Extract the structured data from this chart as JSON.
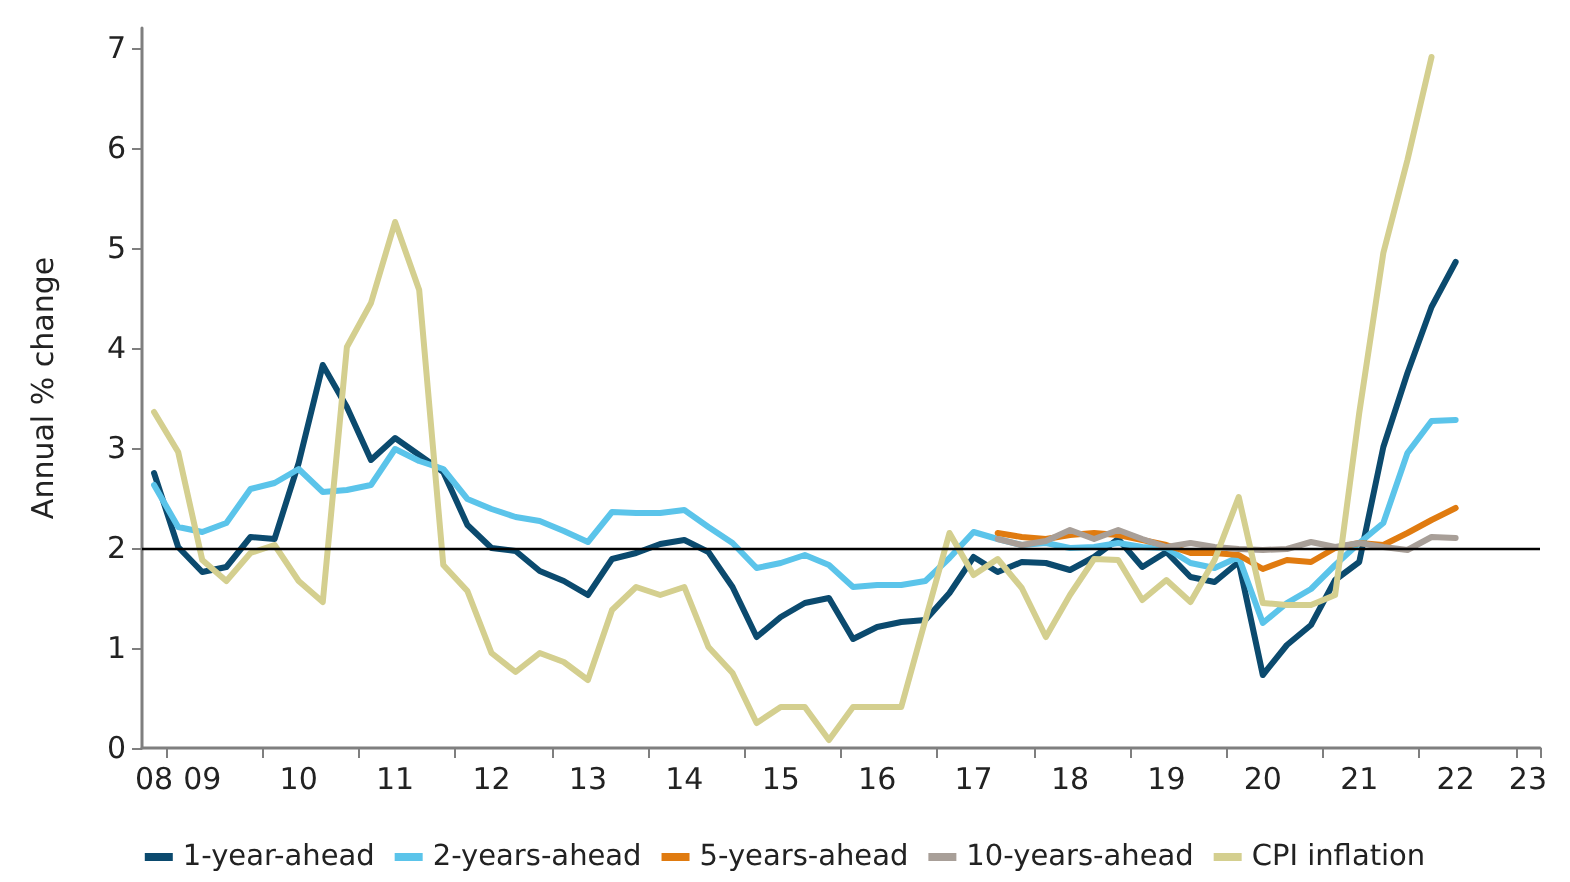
{
  "chart_data": {
    "type": "line",
    "ylabel": "Annual % change",
    "categories": [
      "08",
      null,
      "09",
      null,
      null,
      null,
      "10",
      null,
      null,
      null,
      "11",
      null,
      null,
      null,
      "12",
      null,
      null,
      null,
      "13",
      null,
      null,
      null,
      "14",
      null,
      null,
      null,
      "15",
      null,
      null,
      null,
      "16",
      null,
      null,
      null,
      "17",
      null,
      null,
      null,
      "18",
      null,
      null,
      null,
      "19",
      null,
      null,
      null,
      "20",
      null,
      null,
      null,
      "21",
      null,
      null,
      null,
      "22",
      null,
      null,
      "23"
    ],
    "series": [
      {
        "name": "1-year-ahead",
        "color": "#0b4a6e",
        "values": [
          2.75,
          2.01,
          1.76,
          1.81,
          2.11,
          2.09,
          2.85,
          3.83,
          3.41,
          2.88,
          3.1,
          2.93,
          2.76,
          2.23,
          2.0,
          1.97,
          1.77,
          1.67,
          1.53,
          1.89,
          1.95,
          2.04,
          2.08,
          1.96,
          1.61,
          1.11,
          1.31,
          1.45,
          1.5,
          1.09,
          1.21,
          1.26,
          1.28,
          1.55,
          1.91,
          1.76,
          1.86,
          1.85,
          1.78,
          1.91,
          2.09,
          1.81,
          1.96,
          1.71,
          1.66,
          1.86,
          0.73,
          1.03,
          1.23,
          1.68,
          1.86,
          3.01,
          3.75,
          4.41,
          4.86,
          null,
          null,
          null
        ]
      },
      {
        "name": "2-years-ahead",
        "color": "#5bc4ea",
        "values": [
          2.63,
          2.21,
          2.16,
          2.25,
          2.59,
          2.65,
          2.79,
          2.56,
          2.58,
          2.63,
          2.99,
          2.87,
          2.79,
          2.49,
          2.39,
          2.31,
          2.27,
          2.17,
          2.06,
          2.36,
          2.35,
          2.35,
          2.38,
          2.21,
          2.05,
          1.8,
          1.85,
          1.93,
          1.83,
          1.61,
          1.63,
          1.63,
          1.67,
          1.9,
          2.16,
          2.09,
          2.03,
          2.05,
          2.0,
          2.01,
          2.05,
          2.01,
          2.0,
          1.85,
          1.8,
          1.91,
          1.25,
          1.45,
          1.59,
          1.83,
          2.05,
          2.25,
          2.95,
          3.27,
          3.28,
          null,
          null,
          null
        ]
      },
      {
        "name": "5-years-ahead",
        "color": "#e07b10",
        "values": [
          null,
          null,
          null,
          null,
          null,
          null,
          null,
          null,
          null,
          null,
          null,
          null,
          null,
          null,
          null,
          null,
          null,
          null,
          null,
          null,
          null,
          null,
          null,
          null,
          null,
          null,
          null,
          null,
          null,
          null,
          null,
          null,
          null,
          null,
          null,
          2.15,
          2.11,
          2.09,
          2.13,
          2.15,
          2.13,
          2.08,
          2.03,
          1.95,
          1.95,
          1.93,
          1.79,
          1.88,
          1.86,
          2.0,
          2.05,
          2.03,
          2.15,
          2.28,
          2.4,
          null,
          null,
          null
        ]
      },
      {
        "name": "10-years-ahead",
        "color": "#a89f98",
        "values": [
          null,
          null,
          null,
          null,
          null,
          null,
          null,
          null,
          null,
          null,
          null,
          null,
          null,
          null,
          null,
          null,
          null,
          null,
          null,
          null,
          null,
          null,
          null,
          null,
          null,
          null,
          null,
          null,
          null,
          null,
          null,
          null,
          null,
          null,
          null,
          2.09,
          2.03,
          2.07,
          2.18,
          2.09,
          2.18,
          2.09,
          2.01,
          2.05,
          2.01,
          1.99,
          1.98,
          1.99,
          2.06,
          2.01,
          2.05,
          2.01,
          1.98,
          2.11,
          2.1,
          null,
          null,
          null
        ]
      },
      {
        "name": "CPI inflation",
        "color": "#d4cf8f",
        "values": [
          3.36,
          2.96,
          1.88,
          1.67,
          1.95,
          2.03,
          1.67,
          1.46,
          4.01,
          4.45,
          5.26,
          4.58,
          1.83,
          1.57,
          0.95,
          0.76,
          0.95,
          0.86,
          0.68,
          1.38,
          1.61,
          1.53,
          1.61,
          1.01,
          0.75,
          0.25,
          0.41,
          0.41,
          0.08,
          0.41,
          0.41,
          0.41,
          1.28,
          2.15,
          1.73,
          1.89,
          1.6,
          1.11,
          1.53,
          1.89,
          1.88,
          1.48,
          1.68,
          1.46,
          1.88,
          2.51,
          1.45,
          1.43,
          1.43,
          1.53,
          3.35,
          4.95,
          5.88,
          6.91,
          null,
          null,
          null,
          null
        ]
      }
    ],
    "ylim": [
      0,
      7.2
    ],
    "yticks": [
      0,
      1,
      2,
      3,
      4,
      5,
      6,
      7
    ],
    "ref_lines": [
      {
        "axis": "y",
        "value": 2,
        "color": "#000000"
      }
    ],
    "grid": false,
    "legend": "bottom",
    "marker": "none",
    "line_style": "solid"
  }
}
